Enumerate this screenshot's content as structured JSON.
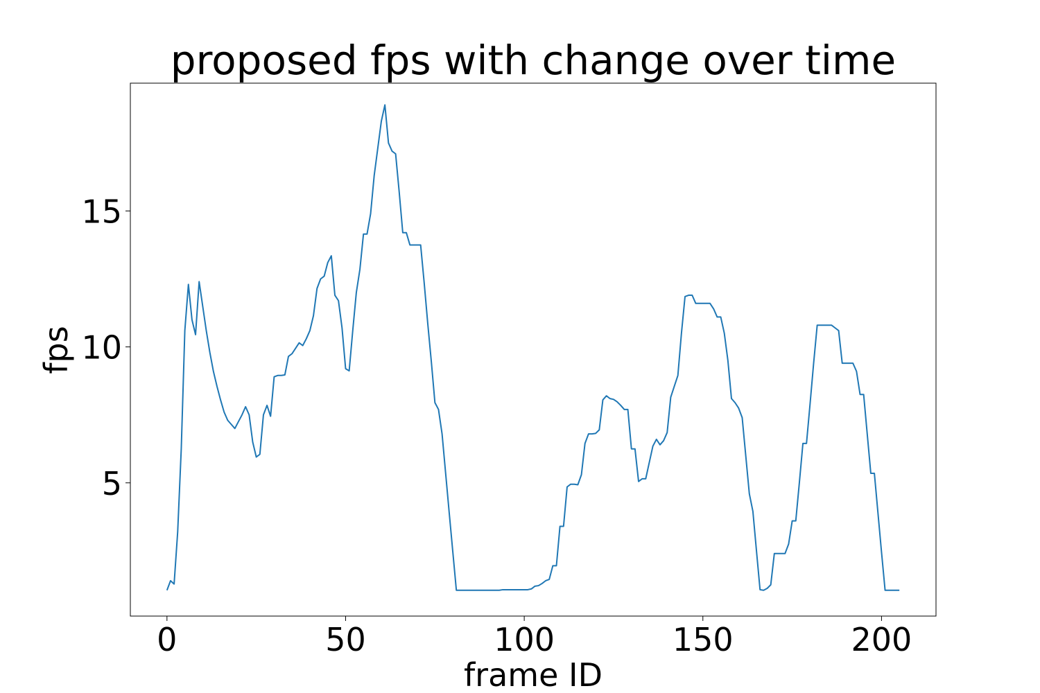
{
  "chart_data": {
    "type": "line",
    "title": "proposed fps with change over time",
    "x_label": "frame ID",
    "y_label": "fps",
    "x": [
      0,
      1,
      2,
      3,
      4,
      5,
      6,
      7,
      8,
      9,
      10,
      11,
      12,
      13,
      14,
      15,
      16,
      17,
      18,
      19,
      20,
      21,
      22,
      23,
      24,
      25,
      26,
      27,
      28,
      29,
      30,
      31,
      32,
      33,
      34,
      35,
      36,
      37,
      38,
      39,
      40,
      41,
      42,
      43,
      44,
      45,
      46,
      47,
      48,
      49,
      50,
      51,
      52,
      53,
      54,
      55,
      56,
      57,
      58,
      59,
      60,
      61,
      62,
      63,
      64,
      65,
      66,
      67,
      68,
      69,
      70,
      71,
      72,
      73,
      74,
      75,
      76,
      77,
      78,
      79,
      80,
      81,
      82,
      83,
      84,
      85,
      86,
      87,
      88,
      89,
      90,
      91,
      92,
      93,
      94,
      95,
      96,
      97,
      98,
      99,
      100,
      101,
      102,
      103,
      104,
      105,
      106,
      107,
      108,
      109,
      110,
      111,
      112,
      113,
      114,
      115,
      116,
      117,
      118,
      119,
      120,
      121,
      122,
      123,
      124,
      125,
      126,
      127,
      128,
      129,
      130,
      131,
      132,
      133,
      134,
      135,
      136,
      137,
      138,
      139,
      140,
      141,
      142,
      143,
      144,
      145,
      146,
      147,
      148,
      149,
      150,
      151,
      152,
      153,
      154,
      155,
      156,
      157,
      158,
      159,
      160,
      161,
      162,
      163,
      164,
      165,
      166,
      167,
      168,
      169,
      170,
      171,
      172,
      173,
      174,
      175,
      176,
      177,
      178,
      179,
      180,
      181,
      182,
      183,
      184,
      185,
      186,
      187,
      188,
      189,
      190,
      191,
      192,
      193,
      194,
      195,
      196,
      197,
      198,
      199,
      200,
      201,
      202,
      203,
      204,
      205
    ],
    "series": [
      {
        "color": "#1f77b4",
        "values": [
          1.05,
          1.4,
          1.28,
          3.2,
          6.25,
          10.6,
          12.3,
          11.0,
          10.45,
          12.4,
          11.5,
          10.6,
          9.8,
          9.1,
          8.55,
          8.05,
          7.6,
          7.3,
          7.15,
          7.0,
          7.25,
          7.5,
          7.8,
          7.5,
          6.5,
          5.95,
          6.05,
          7.5,
          7.85,
          7.45,
          8.9,
          8.95,
          8.95,
          8.97,
          9.65,
          9.75,
          9.95,
          10.15,
          10.05,
          10.3,
          10.6,
          11.15,
          12.15,
          12.5,
          12.6,
          13.1,
          13.35,
          11.9,
          11.7,
          10.7,
          9.2,
          9.12,
          10.6,
          12.0,
          12.85,
          14.15,
          14.15,
          14.9,
          16.3,
          17.3,
          18.3,
          18.9,
          17.5,
          17.2,
          17.1,
          15.7,
          14.2,
          14.2,
          13.75,
          13.75,
          13.75,
          13.75,
          12.35,
          10.85,
          9.45,
          7.95,
          7.7,
          6.8,
          5.35,
          3.9,
          2.47,
          1.05,
          1.05,
          1.05,
          1.05,
          1.05,
          1.05,
          1.05,
          1.05,
          1.05,
          1.05,
          1.05,
          1.05,
          1.05,
          1.07,
          1.07,
          1.07,
          1.07,
          1.07,
          1.07,
          1.07,
          1.07,
          1.1,
          1.2,
          1.22,
          1.3,
          1.4,
          1.45,
          1.95,
          1.95,
          3.4,
          3.4,
          4.85,
          4.95,
          4.95,
          4.93,
          5.3,
          6.45,
          6.8,
          6.8,
          6.82,
          6.95,
          8.05,
          8.2,
          8.1,
          8.07,
          7.98,
          7.85,
          7.7,
          7.7,
          6.25,
          6.25,
          5.05,
          5.15,
          5.15,
          5.75,
          6.35,
          6.6,
          6.4,
          6.55,
          6.85,
          8.15,
          8.55,
          8.95,
          10.5,
          11.85,
          11.9,
          11.9,
          11.6,
          11.6,
          11.6,
          11.6,
          11.6,
          11.4,
          11.1,
          11.1,
          10.5,
          9.5,
          8.1,
          7.95,
          7.75,
          7.4,
          6.0,
          4.6,
          3.95,
          2.5,
          1.07,
          1.05,
          1.12,
          1.25,
          2.4,
          2.4,
          2.4,
          2.4,
          2.75,
          3.6,
          3.6,
          5.0,
          6.45,
          6.45,
          7.9,
          9.4,
          10.8,
          10.8,
          10.8,
          10.8,
          10.8,
          10.7,
          10.6,
          9.4,
          9.4,
          9.4,
          9.4,
          9.1,
          8.25,
          8.25,
          6.8,
          5.35,
          5.35,
          3.9,
          2.45,
          1.05,
          1.05,
          1.05,
          1.05,
          1.05
        ]
      }
    ],
    "xlim": [
      -10.25,
      215.25
    ],
    "ylim": [
      0.1,
      19.7
    ],
    "xticks": [
      0,
      50,
      100,
      150,
      200
    ],
    "yticks": [
      5,
      10,
      15
    ]
  }
}
